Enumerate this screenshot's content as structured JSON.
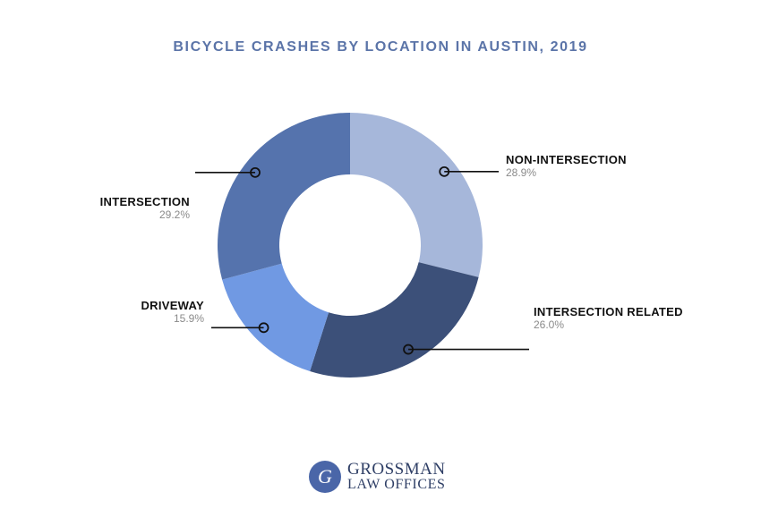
{
  "chart_data": {
    "type": "pie",
    "title": "BICYCLE CRASHES BY LOCATION IN AUSTIN, 2019",
    "slices": [
      {
        "label": "NON-INTERSECTION",
        "value": 28.9,
        "display": "28.9%",
        "color": "#a6b7da"
      },
      {
        "label": "INTERSECTION RELATED",
        "value": 26.0,
        "display": "26.0%",
        "color": "#3c5079"
      },
      {
        "label": "DRIVEWAY",
        "value": 15.9,
        "display": "15.9%",
        "color": "#7099e3"
      },
      {
        "label": "INTERSECTION",
        "value": 29.2,
        "display": "29.2%",
        "color": "#5573ad"
      }
    ]
  },
  "brand": {
    "line1": "GROSSMAN",
    "line2": "LAW OFFICES",
    "monogram": "G",
    "color": "#4a66a8"
  }
}
